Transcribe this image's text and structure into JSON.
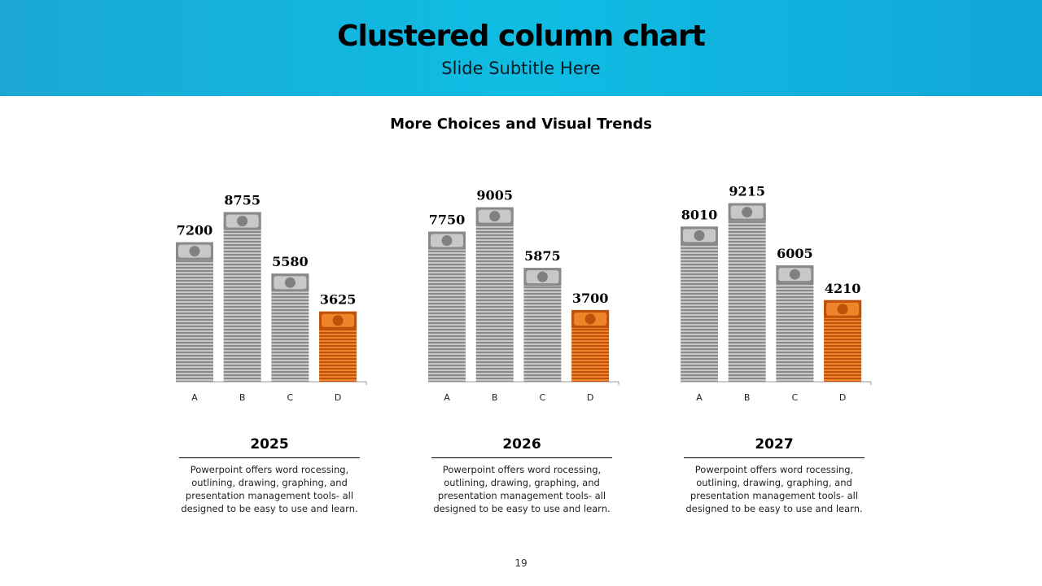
{
  "header": {
    "title": "Clustered column chart",
    "subtitle": "Slide Subtitle Here"
  },
  "chart_data": {
    "type": "bar",
    "title": "More Choices and Visual Trends",
    "categories": [
      "A",
      "B",
      "C",
      "D"
    ],
    "groups": [
      {
        "name": "2025",
        "values": [
          7200,
          8755,
          5580,
          3625
        ]
      },
      {
        "name": "2026",
        "values": [
          7750,
          9005,
          5875,
          3700
        ]
      },
      {
        "name": "2027",
        "values": [
          8010,
          9215,
          6005,
          4210
        ]
      }
    ],
    "highlight_category": "D",
    "colors": {
      "base": "#8a8a8a",
      "highlight": "#e26b0a"
    }
  },
  "panels": [
    {
      "year": "2025",
      "text": "Powerpoint offers word rocessing, outlining, drawing, graphing, and presentation management tools- all designed to be easy to use and learn."
    },
    {
      "year": "2026",
      "text": "Powerpoint offers word rocessing, outlining, drawing, graphing, and presentation management tools- all designed to be easy to use and learn."
    },
    {
      "year": "2027",
      "text": "Powerpoint offers word rocessing, outlining, drawing, graphing, and presentation management tools- all designed to be easy to use and learn."
    }
  ],
  "page_number": "19"
}
